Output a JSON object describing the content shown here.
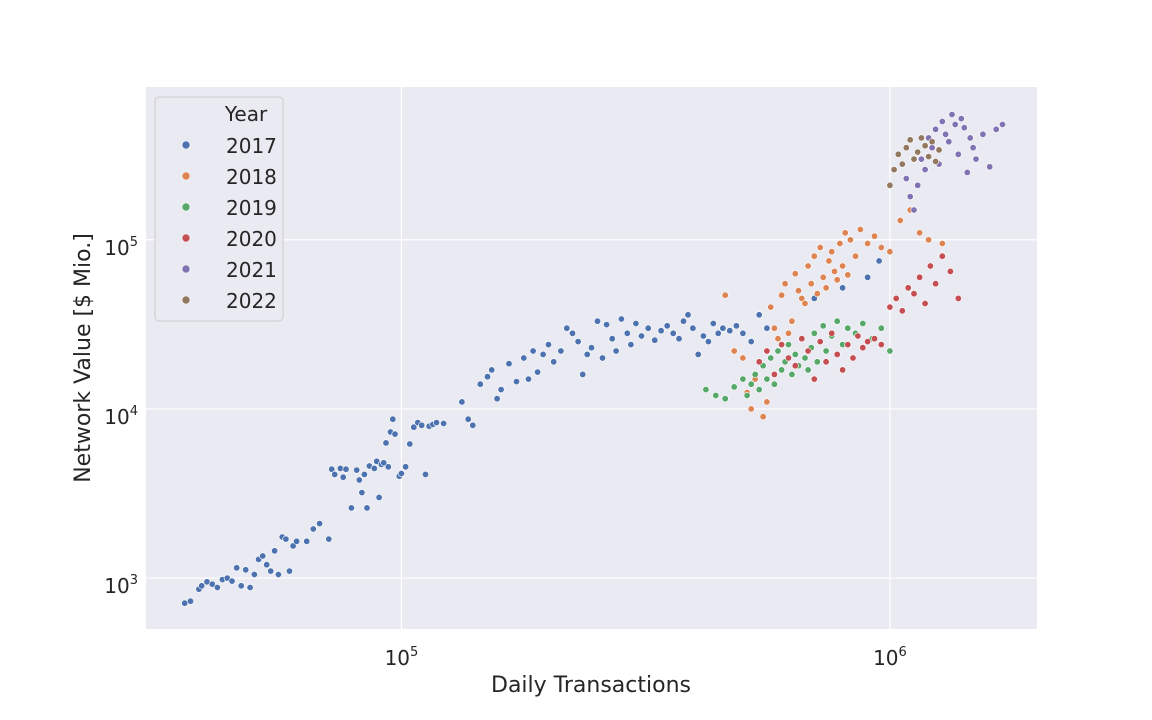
{
  "chart_data": {
    "type": "scatter",
    "title": "",
    "xlabel": "Daily Transactions",
    "ylabel": "Network Value [$ Mio.]",
    "xscale": "log",
    "yscale": "log",
    "xlim": [
      30000,
      2000000
    ],
    "ylim": [
      500,
      800000
    ],
    "grid": true,
    "background_color": "#eaeaf2",
    "x_ticks": [
      {
        "base": "10",
        "exp": "5",
        "value": 100000
      },
      {
        "base": "10",
        "exp": "6",
        "value": 1000000
      }
    ],
    "y_ticks": [
      {
        "base": "10",
        "exp": "3",
        "value": 1000
      },
      {
        "base": "10",
        "exp": "4",
        "value": 10000
      },
      {
        "base": "10",
        "exp": "5",
        "value": 100000
      }
    ],
    "legend": {
      "title": "Year",
      "placement": "top-left"
    },
    "series": [
      {
        "name": "2017",
        "color": "#4c72b0",
        "points": [
          [
            36000,
            710
          ],
          [
            37000,
            730
          ],
          [
            38500,
            860
          ],
          [
            39000,
            900
          ],
          [
            40000,
            950
          ],
          [
            41000,
            920
          ],
          [
            42000,
            880
          ],
          [
            43000,
            980
          ],
          [
            44000,
            1000
          ],
          [
            45000,
            960
          ],
          [
            46000,
            1150
          ],
          [
            47000,
            900
          ],
          [
            48000,
            1120
          ],
          [
            49000,
            880
          ],
          [
            50000,
            1050
          ],
          [
            51000,
            1290
          ],
          [
            52000,
            1350
          ],
          [
            53000,
            1200
          ],
          [
            54000,
            1100
          ],
          [
            55000,
            1450
          ],
          [
            56000,
            1050
          ],
          [
            57000,
            1750
          ],
          [
            58000,
            1700
          ],
          [
            59000,
            1100
          ],
          [
            60000,
            1550
          ],
          [
            61000,
            1650
          ],
          [
            64000,
            1650
          ],
          [
            66000,
            1950
          ],
          [
            68000,
            2100
          ],
          [
            71000,
            1700
          ],
          [
            72000,
            4400
          ],
          [
            73000,
            4100
          ],
          [
            75000,
            4450
          ],
          [
            76000,
            3950
          ],
          [
            77000,
            4400
          ],
          [
            79000,
            2600
          ],
          [
            81000,
            4350
          ],
          [
            82000,
            3800
          ],
          [
            83000,
            3200
          ],
          [
            84000,
            4100
          ],
          [
            85000,
            2600
          ],
          [
            86000,
            4600
          ],
          [
            88000,
            4450
          ],
          [
            89000,
            4900
          ],
          [
            90000,
            3000
          ],
          [
            91000,
            4700
          ],
          [
            92000,
            4800
          ],
          [
            93000,
            6300
          ],
          [
            94000,
            4550
          ],
          [
            95000,
            7300
          ],
          [
            96000,
            8700
          ],
          [
            97000,
            7100
          ],
          [
            99000,
            4000
          ],
          [
            100000,
            4150
          ],
          [
            102000,
            4550
          ],
          [
            104000,
            6200
          ],
          [
            106000,
            7800
          ],
          [
            108000,
            8300
          ],
          [
            110000,
            8000
          ],
          [
            112000,
            4100
          ],
          [
            114000,
            7900
          ],
          [
            116000,
            8100
          ],
          [
            118000,
            8300
          ],
          [
            122000,
            8200
          ],
          [
            133000,
            11000
          ],
          [
            137000,
            8700
          ],
          [
            140000,
            8000
          ],
          [
            145000,
            14000
          ],
          [
            150000,
            15500
          ],
          [
            153000,
            17000
          ],
          [
            157000,
            11500
          ],
          [
            160000,
            13000
          ],
          [
            166000,
            18500
          ],
          [
            172000,
            14500
          ],
          [
            178000,
            20000
          ],
          [
            182000,
            15000
          ],
          [
            186000,
            22000
          ],
          [
            190000,
            16500
          ],
          [
            195000,
            21000
          ],
          [
            200000,
            24000
          ],
          [
            205000,
            19000
          ],
          [
            212000,
            22000
          ],
          [
            218000,
            30000
          ],
          [
            224000,
            28000
          ],
          [
            230000,
            25000
          ],
          [
            235000,
            16000
          ],
          [
            240000,
            21000
          ],
          [
            245000,
            23000
          ],
          [
            252000,
            33000
          ],
          [
            258000,
            20000
          ],
          [
            263000,
            31500
          ],
          [
            270000,
            26000
          ],
          [
            275000,
            22000
          ],
          [
            282000,
            34000
          ],
          [
            290000,
            28000
          ],
          [
            295000,
            24000
          ],
          [
            302000,
            32000
          ],
          [
            310000,
            27000
          ],
          [
            320000,
            30000
          ],
          [
            330000,
            25500
          ],
          [
            340000,
            29000
          ],
          [
            350000,
            31000
          ],
          [
            360000,
            28000
          ],
          [
            370000,
            26000
          ],
          [
            378000,
            33000
          ],
          [
            386000,
            36000
          ],
          [
            395000,
            30000
          ],
          [
            405000,
            21000
          ],
          [
            415000,
            27000
          ],
          [
            425000,
            25000
          ],
          [
            435000,
            32000
          ],
          [
            445000,
            28000
          ],
          [
            455000,
            30000
          ],
          [
            470000,
            29000
          ],
          [
            485000,
            31000
          ],
          [
            500000,
            28000
          ],
          [
            520000,
            25000
          ],
          [
            540000,
            36000
          ],
          [
            560000,
            30000
          ],
          [
            700000,
            45000
          ],
          [
            800000,
            52000
          ],
          [
            900000,
            60000
          ],
          [
            950000,
            75000
          ]
        ]
      },
      {
        "name": "2018",
        "color": "#dd8452",
        "points": [
          [
            460000,
            47000
          ],
          [
            480000,
            22000
          ],
          [
            500000,
            20000
          ],
          [
            510000,
            12500
          ],
          [
            520000,
            10000
          ],
          [
            530000,
            15000
          ],
          [
            540000,
            19000
          ],
          [
            550000,
            9000
          ],
          [
            560000,
            11000
          ],
          [
            570000,
            40000
          ],
          [
            580000,
            30000
          ],
          [
            590000,
            26000
          ],
          [
            600000,
            47000
          ],
          [
            610000,
            55000
          ],
          [
            620000,
            28000
          ],
          [
            630000,
            33000
          ],
          [
            640000,
            63000
          ],
          [
            650000,
            50000
          ],
          [
            660000,
            45000
          ],
          [
            670000,
            42000
          ],
          [
            680000,
            70000
          ],
          [
            690000,
            55000
          ],
          [
            700000,
            80000
          ],
          [
            710000,
            48000
          ],
          [
            720000,
            90000
          ],
          [
            730000,
            60000
          ],
          [
            740000,
            52000
          ],
          [
            750000,
            75000
          ],
          [
            760000,
            85000
          ],
          [
            770000,
            65000
          ],
          [
            780000,
            58000
          ],
          [
            790000,
            95000
          ],
          [
            800000,
            70000
          ],
          [
            810000,
            110000
          ],
          [
            820000,
            62000
          ],
          [
            830000,
            100000
          ],
          [
            850000,
            80000
          ],
          [
            870000,
            115000
          ],
          [
            900000,
            95000
          ],
          [
            930000,
            105000
          ],
          [
            960000,
            90000
          ],
          [
            1000000,
            85000
          ],
          [
            1050000,
            130000
          ],
          [
            1100000,
            150000
          ],
          [
            1150000,
            110000
          ],
          [
            1200000,
            100000
          ],
          [
            1280000,
            95000
          ]
        ]
      },
      {
        "name": "2019",
        "color": "#55a868",
        "points": [
          [
            420000,
            13000
          ],
          [
            440000,
            12000
          ],
          [
            460000,
            11500
          ],
          [
            480000,
            13500
          ],
          [
            500000,
            15000
          ],
          [
            510000,
            12000
          ],
          [
            520000,
            14000
          ],
          [
            530000,
            16000
          ],
          [
            540000,
            13000
          ],
          [
            550000,
            18000
          ],
          [
            560000,
            15000
          ],
          [
            570000,
            20000
          ],
          [
            580000,
            14000
          ],
          [
            590000,
            22000
          ],
          [
            600000,
            17000
          ],
          [
            610000,
            19000
          ],
          [
            620000,
            24000
          ],
          [
            630000,
            16000
          ],
          [
            640000,
            21000
          ],
          [
            650000,
            18000
          ],
          [
            660000,
            26000
          ],
          [
            670000,
            20000
          ],
          [
            680000,
            17000
          ],
          [
            690000,
            23000
          ],
          [
            700000,
            28000
          ],
          [
            710000,
            19000
          ],
          [
            720000,
            25000
          ],
          [
            730000,
            31000
          ],
          [
            740000,
            22000
          ],
          [
            760000,
            27000
          ],
          [
            780000,
            33000
          ],
          [
            800000,
            24000
          ],
          [
            820000,
            30000
          ],
          [
            850000,
            28000
          ],
          [
            880000,
            32000
          ],
          [
            920000,
            26000
          ],
          [
            960000,
            30000
          ],
          [
            1000000,
            22000
          ]
        ]
      },
      {
        "name": "2020",
        "color": "#c44e52",
        "points": [
          [
            540000,
            19000
          ],
          [
            560000,
            22000
          ],
          [
            580000,
            16000
          ],
          [
            600000,
            24000
          ],
          [
            620000,
            20000
          ],
          [
            640000,
            18000
          ],
          [
            660000,
            26000
          ],
          [
            680000,
            22000
          ],
          [
            700000,
            15000
          ],
          [
            720000,
            25000
          ],
          [
            740000,
            19000
          ],
          [
            760000,
            28000
          ],
          [
            780000,
            21000
          ],
          [
            800000,
            17000
          ],
          [
            820000,
            24000
          ],
          [
            840000,
            20000
          ],
          [
            860000,
            27000
          ],
          [
            880000,
            23000
          ],
          [
            900000,
            25000
          ],
          [
            930000,
            26000
          ],
          [
            960000,
            24000
          ],
          [
            1000000,
            40000
          ],
          [
            1030000,
            45000
          ],
          [
            1060000,
            38000
          ],
          [
            1090000,
            52000
          ],
          [
            1120000,
            48000
          ],
          [
            1150000,
            60000
          ],
          [
            1180000,
            42000
          ],
          [
            1210000,
            70000
          ],
          [
            1240000,
            55000
          ],
          [
            1280000,
            80000
          ],
          [
            1330000,
            65000
          ],
          [
            1380000,
            45000
          ]
        ]
      },
      {
        "name": "2021",
        "color": "#8172b3",
        "points": [
          [
            1080000,
            230000
          ],
          [
            1100000,
            180000
          ],
          [
            1120000,
            150000
          ],
          [
            1140000,
            210000
          ],
          [
            1160000,
            300000
          ],
          [
            1180000,
            260000
          ],
          [
            1200000,
            400000
          ],
          [
            1220000,
            350000
          ],
          [
            1240000,
            450000
          ],
          [
            1260000,
            280000
          ],
          [
            1280000,
            500000
          ],
          [
            1300000,
            420000
          ],
          [
            1320000,
            380000
          ],
          [
            1340000,
            550000
          ],
          [
            1360000,
            480000
          ],
          [
            1380000,
            320000
          ],
          [
            1400000,
            520000
          ],
          [
            1420000,
            460000
          ],
          [
            1440000,
            250000
          ],
          [
            1460000,
            400000
          ],
          [
            1480000,
            350000
          ],
          [
            1500000,
            300000
          ],
          [
            1550000,
            420000
          ],
          [
            1600000,
            270000
          ],
          [
            1650000,
            450000
          ],
          [
            1700000,
            480000
          ]
        ]
      },
      {
        "name": "2022",
        "color": "#937860",
        "points": [
          [
            1000000,
            210000
          ],
          [
            1020000,
            260000
          ],
          [
            1040000,
            320000
          ],
          [
            1060000,
            280000
          ],
          [
            1080000,
            350000
          ],
          [
            1100000,
            390000
          ],
          [
            1120000,
            300000
          ],
          [
            1140000,
            330000
          ],
          [
            1160000,
            400000
          ],
          [
            1180000,
            360000
          ],
          [
            1200000,
            310000
          ],
          [
            1220000,
            380000
          ],
          [
            1240000,
            290000
          ],
          [
            1260000,
            340000
          ]
        ]
      }
    ]
  }
}
